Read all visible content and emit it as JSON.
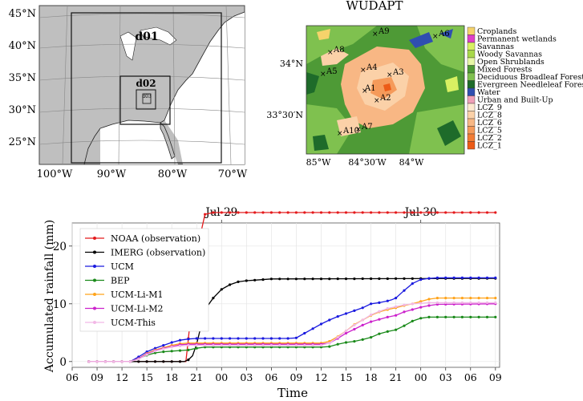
{
  "map_left": {
    "lat_labels": [
      "45°N",
      "40°N",
      "35°N",
      "30°N",
      "25°N"
    ],
    "lat_values": [
      45,
      40,
      35,
      30,
      25
    ],
    "lon_labels": [
      "100°W",
      "90°W",
      "80°W",
      "70°W"
    ],
    "lon_values": [
      -100,
      -90,
      -80,
      -70
    ],
    "domains": [
      {
        "label": "d01"
      },
      {
        "label": "d02"
      },
      {
        "label": "d03"
      }
    ]
  },
  "map_right": {
    "title": "WUDAPT",
    "lat_labels": [
      "34°N",
      "33°30′N"
    ],
    "lon_labels": [
      "85°W",
      "84°30′W",
      "84°W"
    ],
    "stations": [
      {
        "label": "A1"
      },
      {
        "label": "A2"
      },
      {
        "label": "A3"
      },
      {
        "label": "A4"
      },
      {
        "label": "A5"
      },
      {
        "label": "A6"
      },
      {
        "label": "A7"
      },
      {
        "label": "A8"
      },
      {
        "label": "A9"
      },
      {
        "label": "A10"
      }
    ],
    "legend": [
      {
        "label": "Croplands",
        "color": "#f5d36b"
      },
      {
        "label": "Permanent wetlands",
        "color": "#e040c8"
      },
      {
        "label": "Savannas",
        "color": "#d8f062"
      },
      {
        "label": "Woody Savannas",
        "color": "#a8d84a"
      },
      {
        "label": "Open Shrublands",
        "color": "#e7f7a6"
      },
      {
        "label": "Mixed Forests",
        "color": "#4e9a36"
      },
      {
        "label": "Deciduous Broadleaf Forest",
        "color": "#7fc14f"
      },
      {
        "label": "Evergreen Needleleaf Forest",
        "color": "#1e6b2a"
      },
      {
        "label": "Water",
        "color": "#2f4fb0"
      },
      {
        "label": "Urban and Built-Up",
        "color": "#f0a0b8"
      },
      {
        "label": "LCZ_9",
        "color": "#fde8cf"
      },
      {
        "label": "LCZ_8",
        "color": "#fbd1a8"
      },
      {
        "label": "LCZ_6",
        "color": "#f8b784"
      },
      {
        "label": "LCZ_5",
        "color": "#f59a5a"
      },
      {
        "label": "LCZ_2",
        "color": "#f27c35"
      },
      {
        "label": "LCZ_1",
        "color": "#ec5b17"
      }
    ]
  },
  "chart_data": {
    "type": "line",
    "xlabel": "Time",
    "ylabel": "Accumulated rainfall (mm)",
    "ylim": [
      -1,
      24
    ],
    "yticks": [
      0,
      10,
      20
    ],
    "x_hours_range": [
      6,
      57.5
    ],
    "x_tick_hours": [
      6,
      9,
      12,
      15,
      18,
      21,
      24,
      27,
      30,
      33,
      36,
      39,
      42,
      45,
      48,
      51,
      54,
      57
    ],
    "x_tick_labels": [
      "06",
      "09",
      "12",
      "15",
      "18",
      "21",
      "00",
      "03",
      "06",
      "09",
      "12",
      "15",
      "18",
      "21",
      "00",
      "03",
      "06",
      "09"
    ],
    "top_ticks": [
      {
        "hour": 24,
        "label": "Jul 29"
      },
      {
        "hour": 48,
        "label": "Jul 30"
      }
    ],
    "grid": true,
    "legend_position": "top-left",
    "series": [
      {
        "name": "NOAA (observation)",
        "color": "#e41a1c",
        "x": [
          8,
          19.7,
          20.3,
          21,
          22,
          23,
          24,
          57
        ],
        "y": [
          0,
          0,
          8,
          19,
          25.5,
          25.8,
          25.8,
          25.8
        ]
      },
      {
        "name": "IMERG (observation)",
        "color": "#000000",
        "x": [
          8,
          13,
          16,
          19,
          19.5,
          20,
          20.5,
          21,
          21.5,
          22,
          23,
          24,
          25,
          26,
          27,
          28,
          30,
          57
        ],
        "y": [
          0,
          0,
          0,
          0,
          0,
          0.3,
          1,
          3,
          6,
          9,
          11,
          12.5,
          13.3,
          13.8,
          14,
          14.1,
          14.3,
          14.4
        ]
      },
      {
        "name": "UCM",
        "color": "#1a1adf",
        "x": [
          8,
          13,
          14,
          15,
          16,
          17,
          18,
          19,
          20,
          21,
          23,
          26,
          30,
          32,
          33,
          34,
          35,
          36,
          37,
          38,
          39,
          40,
          41,
          42,
          43,
          44,
          44.5,
          45,
          46,
          47,
          48,
          49,
          50,
          51,
          52,
          54,
          57
        ],
        "y": [
          0,
          0,
          0.8,
          1.7,
          2.3,
          2.8,
          3.3,
          3.7,
          3.9,
          4,
          4,
          4,
          4,
          4,
          4.1,
          4.9,
          5.7,
          6.5,
          7.2,
          7.8,
          8.3,
          8.8,
          9.3,
          10,
          10.2,
          10.5,
          10.7,
          11,
          12.3,
          13.5,
          14.2,
          14.4,
          14.5,
          14.5,
          14.5,
          14.5,
          14.5
        ]
      },
      {
        "name": "BEP",
        "color": "#1a8a1a",
        "x": [
          8,
          13,
          14,
          15,
          16,
          17,
          18,
          19,
          20,
          21,
          22,
          23,
          24,
          26,
          30,
          36,
          37,
          38,
          39,
          40,
          41,
          42,
          43,
          44,
          45,
          46,
          47,
          48,
          49,
          50,
          57
        ],
        "y": [
          0,
          0,
          0.5,
          1.1,
          1.5,
          1.7,
          1.8,
          1.9,
          2,
          2.3,
          2.5,
          2.5,
          2.5,
          2.5,
          2.5,
          2.5,
          2.6,
          3,
          3.3,
          3.5,
          3.8,
          4.2,
          4.8,
          5.2,
          5.5,
          6.2,
          7,
          7.5,
          7.7,
          7.7,
          7.7
        ]
      },
      {
        "name": "UCM-Li-M1",
        "color": "#ffa31a",
        "x": [
          8,
          13,
          14,
          15,
          16,
          17,
          18,
          19,
          20,
          21,
          30,
          36,
          37,
          38,
          39,
          40,
          41,
          42,
          43,
          44,
          45,
          46,
          47,
          48,
          49,
          50,
          57
        ],
        "y": [
          0,
          0,
          0.5,
          1.4,
          2,
          2.4,
          2.8,
          3.1,
          3.2,
          3.2,
          3.2,
          3.2,
          3.5,
          4.3,
          5.3,
          6.4,
          7.2,
          8,
          8.6,
          9,
          9.3,
          9.7,
          10,
          10.4,
          10.8,
          11,
          11
        ]
      },
      {
        "name": "UCM-Li-M2",
        "color": "#cc22cc",
        "x": [
          8,
          13,
          14,
          15,
          16,
          17,
          18,
          19,
          20,
          21,
          30,
          36,
          37,
          38,
          39,
          40,
          41,
          42,
          43,
          44,
          45,
          46,
          47,
          48,
          49,
          50,
          57
        ],
        "y": [
          0,
          0,
          0.5,
          1.3,
          1.9,
          2.3,
          2.6,
          2.9,
          3,
          3,
          3,
          3,
          3.2,
          4,
          4.9,
          5.6,
          6.3,
          6.9,
          7.3,
          7.7,
          8,
          8.6,
          9,
          9.4,
          9.7,
          9.9,
          10
        ]
      },
      {
        "name": "UCM-This",
        "color": "#f2b8e6",
        "x": [
          8,
          13,
          14,
          15,
          16,
          17,
          18,
          19,
          20,
          21,
          30,
          36,
          37,
          38,
          39,
          40,
          41,
          42,
          43,
          44,
          45,
          46,
          47,
          48,
          49,
          50,
          57
        ],
        "y": [
          0,
          0,
          0.4,
          1.2,
          1.8,
          2.2,
          2.5,
          2.7,
          2.8,
          2.8,
          2.8,
          2.8,
          3.2,
          4.2,
          5.3,
          6.3,
          7.2,
          8.1,
          8.7,
          9.2,
          9.5,
          9.8,
          10,
          10.1,
          10.2,
          10.2,
          10.2
        ]
      }
    ]
  }
}
